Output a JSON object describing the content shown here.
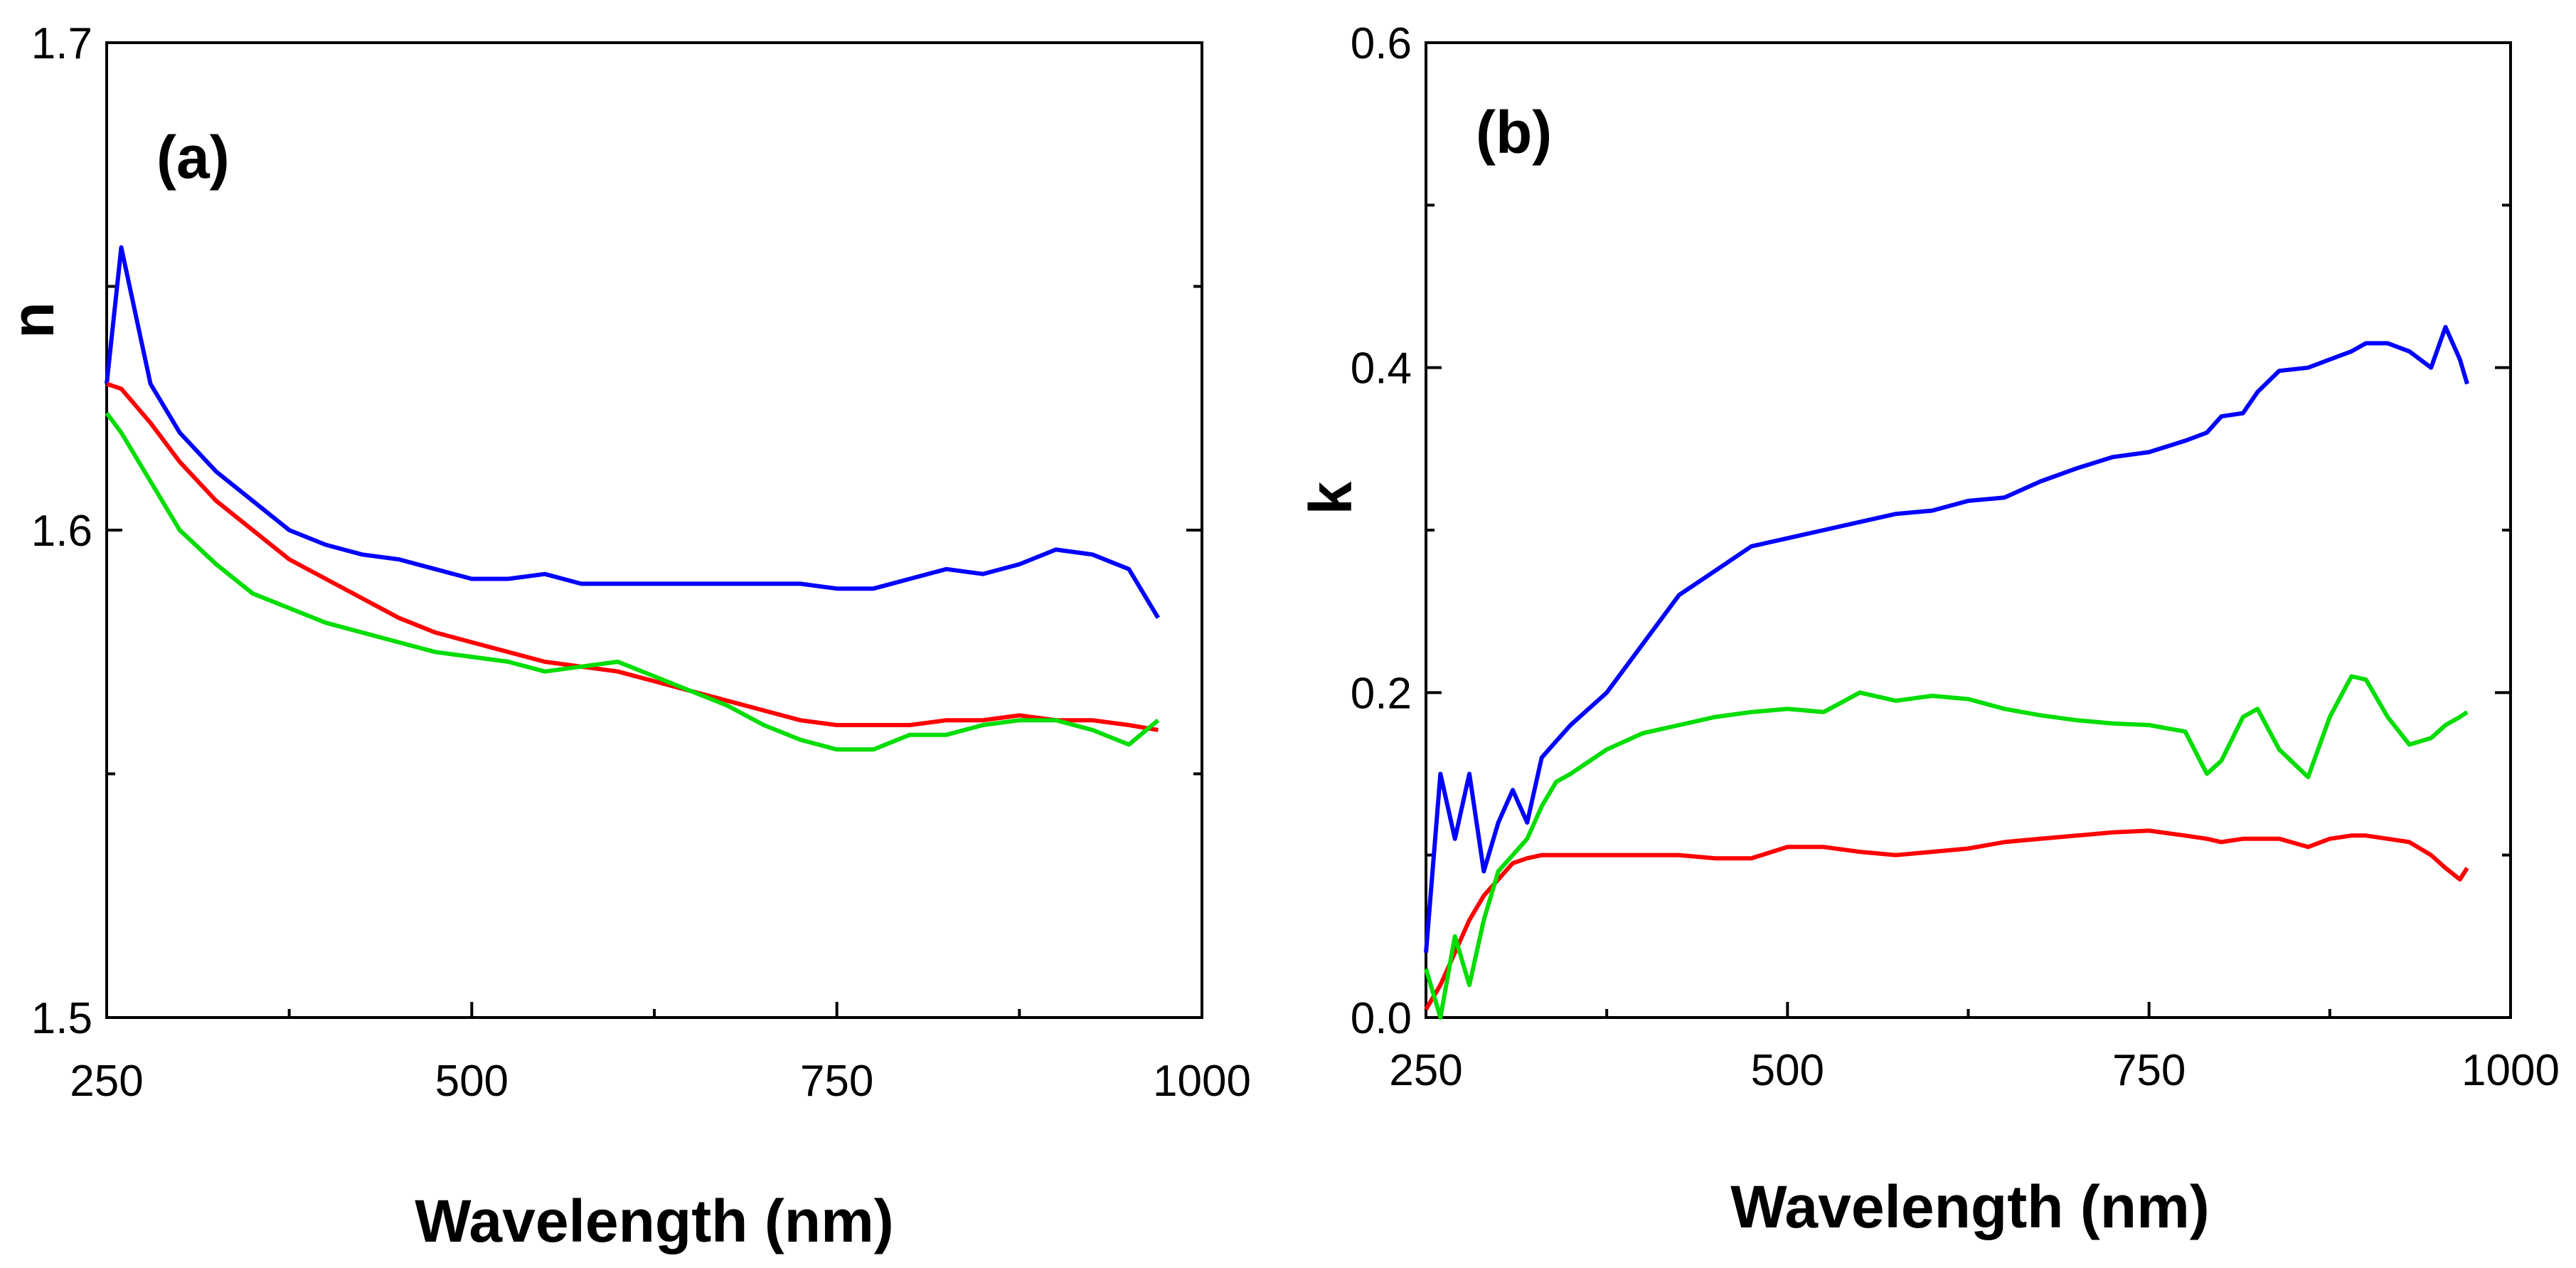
{
  "chart_data": [
    {
      "type": "line",
      "panel_label": "(a)",
      "xlabel": "Wavelength (nm)",
      "ylabel": "n",
      "xlim": [
        250,
        1000
      ],
      "ylim": [
        1.5,
        1.7
      ],
      "xticks": [
        250,
        500,
        750,
        1000
      ],
      "yticks": [
        1.5,
        1.6,
        1.7
      ],
      "xtick_labels": [
        "250",
        "500",
        "750",
        "1000"
      ],
      "ytick_labels": [
        "1.5",
        "1.6",
        "1.7"
      ],
      "x": [
        250,
        260,
        280,
        300,
        325,
        350,
        375,
        400,
        425,
        450,
        475,
        500,
        525,
        550,
        575,
        600,
        625,
        650,
        675,
        700,
        725,
        750,
        775,
        800,
        825,
        850,
        875,
        900,
        925,
        950,
        970
      ],
      "series": [
        {
          "name": "blue",
          "color": "#0000ff",
          "values": [
            1.63,
            1.658,
            1.63,
            1.62,
            1.612,
            1.606,
            1.6,
            1.597,
            1.595,
            1.594,
            1.592,
            1.59,
            1.59,
            1.591,
            1.589,
            1.589,
            1.589,
            1.589,
            1.589,
            1.589,
            1.589,
            1.588,
            1.588,
            1.59,
            1.592,
            1.591,
            1.593,
            1.596,
            1.595,
            1.592,
            1.582
          ]
        },
        {
          "name": "red",
          "color": "#ff0000",
          "values": [
            1.63,
            1.629,
            1.622,
            1.614,
            1.606,
            1.6,
            1.594,
            1.59,
            1.586,
            1.582,
            1.579,
            1.577,
            1.575,
            1.573,
            1.572,
            1.571,
            1.569,
            1.567,
            1.565,
            1.563,
            1.561,
            1.56,
            1.56,
            1.56,
            1.561,
            1.561,
            1.562,
            1.561,
            1.561,
            1.56,
            1.559
          ]
        },
        {
          "name": "green",
          "color": "#00dd00",
          "values": [
            1.624,
            1.62,
            1.61,
            1.6,
            1.593,
            1.587,
            1.584,
            1.581,
            1.579,
            1.577,
            1.575,
            1.574,
            1.573,
            1.571,
            1.572,
            1.573,
            1.57,
            1.567,
            1.564,
            1.56,
            1.557,
            1.555,
            1.555,
            1.558,
            1.558,
            1.56,
            1.561,
            1.561,
            1.559,
            1.556,
            1.561
          ]
        }
      ]
    },
    {
      "type": "line",
      "panel_label": "(b)",
      "xlabel": "Wavelength (nm)",
      "ylabel": "k",
      "xlim": [
        250,
        1000
      ],
      "ylim": [
        0.0,
        0.6
      ],
      "xticks": [
        250,
        500,
        750,
        1000
      ],
      "yticks": [
        0.0,
        0.2,
        0.4,
        0.6
      ],
      "xtick_labels": [
        "250",
        "500",
        "750",
        "1000"
      ],
      "ytick_labels": [
        "0.0",
        "0.2",
        "0.4",
        "0.6"
      ],
      "x": [
        250,
        260,
        270,
        280,
        290,
        300,
        310,
        320,
        330,
        340,
        350,
        375,
        400,
        425,
        450,
        475,
        500,
        525,
        550,
        575,
        600,
        625,
        650,
        675,
        700,
        725,
        750,
        775,
        790,
        800,
        815,
        825,
        840,
        860,
        875,
        890,
        900,
        915,
        930,
        945,
        955,
        965,
        970
      ],
      "series": [
        {
          "name": "blue",
          "color": "#0000ff",
          "values": [
            0.04,
            0.15,
            0.11,
            0.15,
            0.09,
            0.12,
            0.14,
            0.12,
            0.16,
            0.17,
            0.18,
            0.2,
            0.23,
            0.26,
            0.275,
            0.29,
            0.295,
            0.3,
            0.305,
            0.31,
            0.312,
            0.318,
            0.32,
            0.33,
            0.338,
            0.345,
            0.348,
            0.355,
            0.36,
            0.37,
            0.372,
            0.385,
            0.398,
            0.4,
            0.405,
            0.41,
            0.415,
            0.415,
            0.41,
            0.4,
            0.425,
            0.405,
            0.39
          ]
        },
        {
          "name": "red",
          "color": "#ff0000",
          "values": [
            0.005,
            0.02,
            0.04,
            0.06,
            0.075,
            0.085,
            0.095,
            0.098,
            0.1,
            0.1,
            0.1,
            0.1,
            0.1,
            0.1,
            0.098,
            0.098,
            0.105,
            0.105,
            0.102,
            0.1,
            0.102,
            0.104,
            0.108,
            0.11,
            0.112,
            0.114,
            0.115,
            0.112,
            0.11,
            0.108,
            0.11,
            0.11,
            0.11,
            0.105,
            0.11,
            0.112,
            0.112,
            0.11,
            0.108,
            0.1,
            0.092,
            0.085,
            0.092
          ]
        },
        {
          "name": "green",
          "color": "#00dd00",
          "values": [
            0.03,
            0.0,
            0.05,
            0.02,
            0.06,
            0.09,
            0.1,
            0.11,
            0.13,
            0.145,
            0.15,
            0.165,
            0.175,
            0.18,
            0.185,
            0.188,
            0.19,
            0.188,
            0.2,
            0.195,
            0.198,
            0.196,
            0.19,
            0.186,
            0.183,
            0.181,
            0.18,
            0.176,
            0.15,
            0.158,
            0.185,
            0.19,
            0.165,
            0.148,
            0.185,
            0.21,
            0.208,
            0.185,
            0.168,
            0.172,
            0.18,
            0.185,
            0.188
          ]
        }
      ]
    }
  ]
}
